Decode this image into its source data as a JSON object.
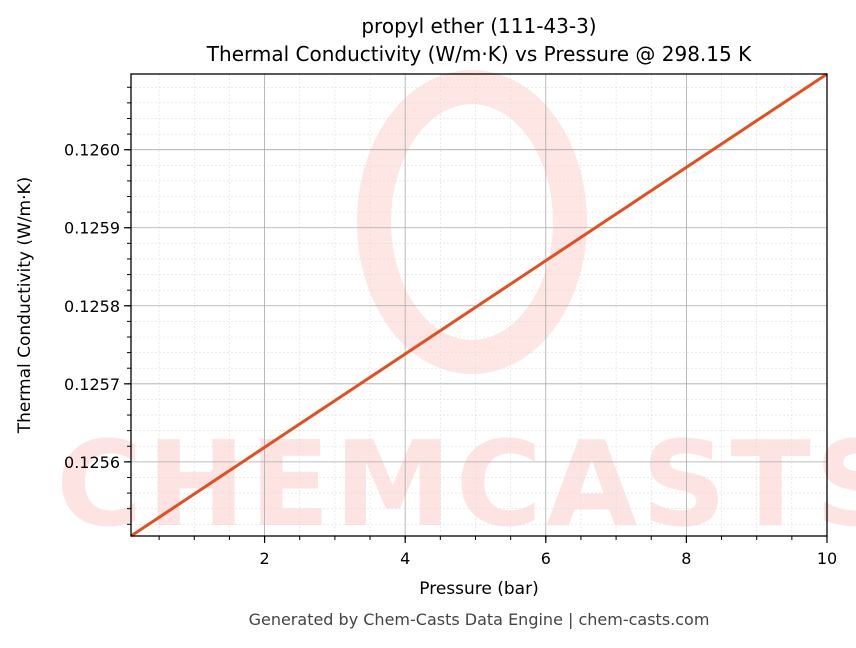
{
  "chart_data": {
    "type": "line",
    "title": "propyl ether (111-43-3)",
    "subtitle": "Thermal Conductivity (W/m·K) vs Pressure @ 298.15 K",
    "xlabel": "Pressure (bar)",
    "ylabel": "Thermal Conductivity (W/m·K)",
    "xlim": [
      0.1,
      10
    ],
    "ylim": [
      0.125505,
      0.126097
    ],
    "xticks": [
      2,
      4,
      6,
      8,
      10
    ],
    "xtick_labels": [
      "2",
      "4",
      "6",
      "8",
      "10"
    ],
    "yticks": [
      0.1256,
      0.1257,
      0.1258,
      0.1259,
      0.126
    ],
    "ytick_labels": [
      "0.1256",
      "0.1257",
      "0.1258",
      "0.1259",
      "0.1260"
    ],
    "grid": true,
    "series": [
      {
        "name": "Thermal Conductivity",
        "color": "#e05020",
        "x": [
          0.1,
          10
        ],
        "y": [
          0.125505,
          0.126097
        ]
      }
    ],
    "watermark": "CHEMCASTS",
    "footer": "Generated by Chem-Casts Data Engine | chem-casts.com"
  }
}
